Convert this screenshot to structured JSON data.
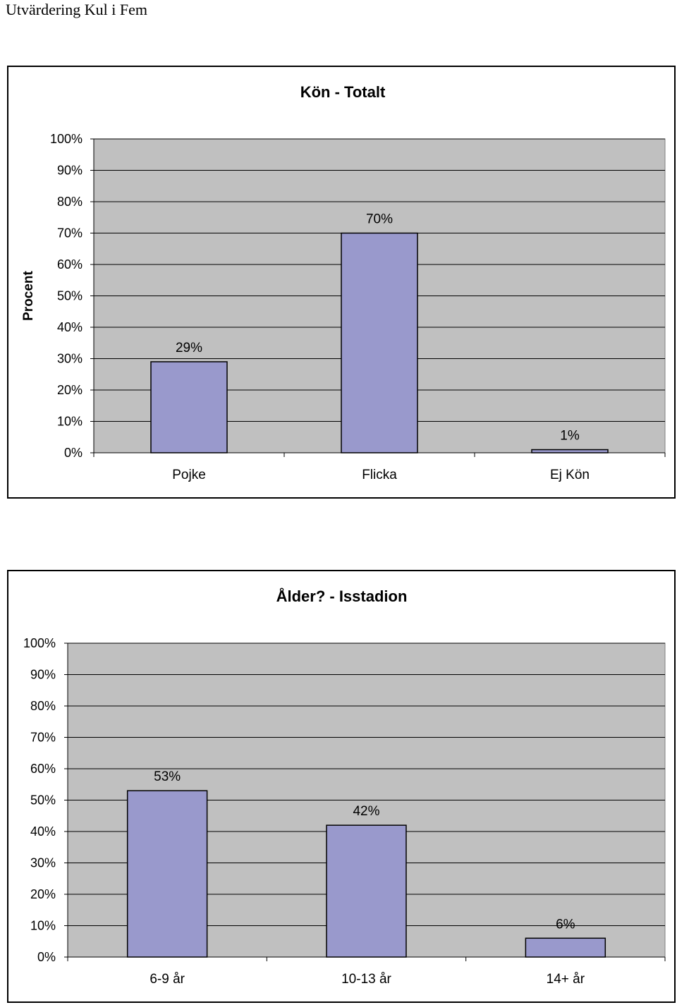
{
  "document": {
    "title": "Utvärdering Kul i Fem"
  },
  "colors": {
    "plot_bg": "#c0c0c0",
    "bar_fill": "#9999cc",
    "bar_stroke": "#000000",
    "grid": "#000000"
  },
  "chart_data": [
    {
      "type": "bar",
      "title": "Kön - Totalt",
      "ylabel": "Procent",
      "xlabel": "",
      "categories": [
        "Pojke",
        "Flicka",
        "Ej Kön"
      ],
      "values": [
        29,
        70,
        1
      ],
      "data_labels": [
        "29%",
        "70%",
        "1%"
      ],
      "ylim": [
        0,
        100
      ],
      "yticks": [
        "0%",
        "10%",
        "20%",
        "30%",
        "40%",
        "50%",
        "60%",
        "70%",
        "80%",
        "90%",
        "100%"
      ],
      "grid": true,
      "legend": "none"
    },
    {
      "type": "bar",
      "title": "Ålder? - Isstadion",
      "ylabel": "",
      "xlabel": "",
      "categories": [
        "6-9 år",
        "10-13 år",
        "14+ år"
      ],
      "values": [
        53,
        42,
        6
      ],
      "data_labels": [
        "53%",
        "42%",
        "6%"
      ],
      "ylim": [
        0,
        100
      ],
      "yticks": [
        "0%",
        "10%",
        "20%",
        "30%",
        "40%",
        "50%",
        "60%",
        "70%",
        "80%",
        "90%",
        "100%"
      ],
      "grid": true,
      "legend": "none"
    }
  ]
}
